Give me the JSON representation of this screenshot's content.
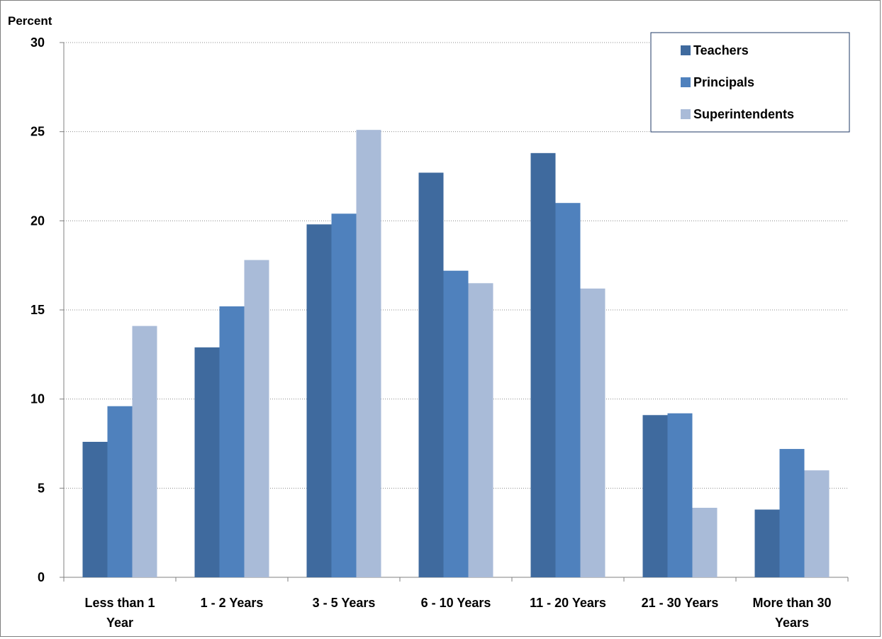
{
  "chart_data": {
    "type": "bar",
    "ylabel": "Percent",
    "xlabel": "",
    "ylim": [
      0,
      30
    ],
    "yticks": [
      0,
      5,
      10,
      15,
      20,
      25,
      30
    ],
    "grid": "horizontal-dotted",
    "legend_position": "top-right",
    "categories": [
      [
        "Less than 1",
        "Year"
      ],
      [
        "1 - 2 Years"
      ],
      [
        "3 - 5 Years"
      ],
      [
        "6 - 10 Years"
      ],
      [
        "11 - 20 Years"
      ],
      [
        "21 - 30 Years"
      ],
      [
        "More than 30",
        "Years"
      ]
    ],
    "series": [
      {
        "name": "Teachers",
        "color": "#3f6a9e",
        "values": [
          7.6,
          12.9,
          19.8,
          22.7,
          23.8,
          9.1,
          3.8
        ]
      },
      {
        "name": "Principals",
        "color": "#4f81bd",
        "values": [
          9.6,
          15.2,
          20.4,
          17.2,
          21.0,
          9.2,
          7.2
        ]
      },
      {
        "name": "Superintendents",
        "color": "#a9bbd8",
        "values": [
          14.1,
          17.8,
          25.1,
          16.5,
          16.2,
          3.9,
          6.0
        ]
      }
    ]
  }
}
